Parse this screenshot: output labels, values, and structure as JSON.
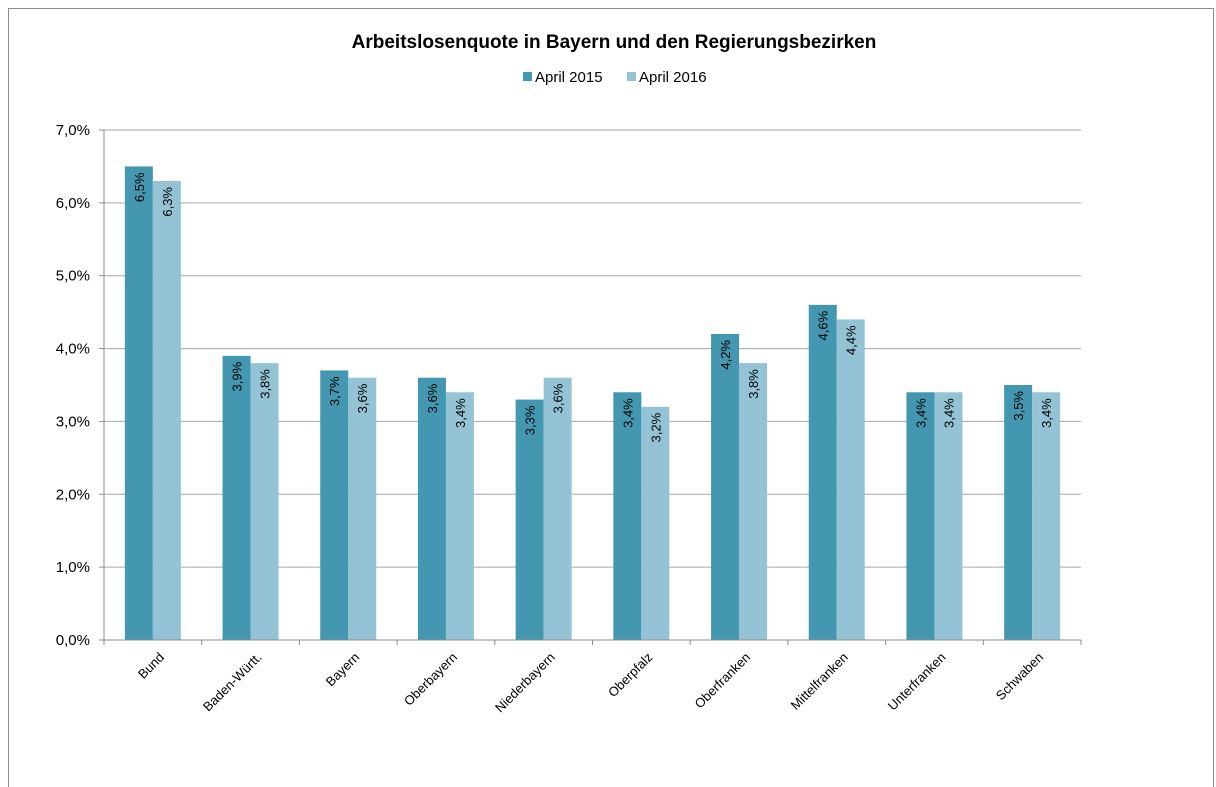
{
  "chart_data": {
    "type": "bar",
    "title": "Arbeitslosenquote in Bayern und den Regierungsbezirken",
    "categories": [
      "Bund",
      "Baden-Württ.",
      "Bayern",
      "Oberbayern",
      "Niederbayern",
      "Oberpfalz",
      "Oberfranken",
      "Mittelfranken",
      "Unterfranken",
      "Schwaben"
    ],
    "series": [
      {
        "name": "April 2015",
        "color": "#4397b0",
        "values": [
          6.5,
          3.9,
          3.7,
          3.6,
          3.3,
          3.4,
          4.2,
          4.6,
          3.4,
          3.5
        ],
        "labels": [
          "6,5%",
          "3,9%",
          "3,7%",
          "3,6%",
          "3,3%",
          "3,4%",
          "4,2%",
          "4,6%",
          "3,4%",
          "3,5%"
        ]
      },
      {
        "name": "April 2016",
        "color": "#93c3d5",
        "values": [
          6.3,
          3.8,
          3.6,
          3.4,
          3.6,
          3.2,
          3.8,
          4.4,
          3.4,
          3.4
        ],
        "labels": [
          "6,3%",
          "3,8%",
          "3,6%",
          "3,4%",
          "3,6%",
          "3,2%",
          "3,8%",
          "4,4%",
          "3,4%",
          "3,4%"
        ]
      }
    ],
    "yticks": [
      "0,0%",
      "1,0%",
      "2,0%",
      "3,0%",
      "4,0%",
      "5,0%",
      "6,0%",
      "7,0%"
    ],
    "ylim": [
      0,
      7
    ],
    "grid": true,
    "legend_position": "top"
  }
}
